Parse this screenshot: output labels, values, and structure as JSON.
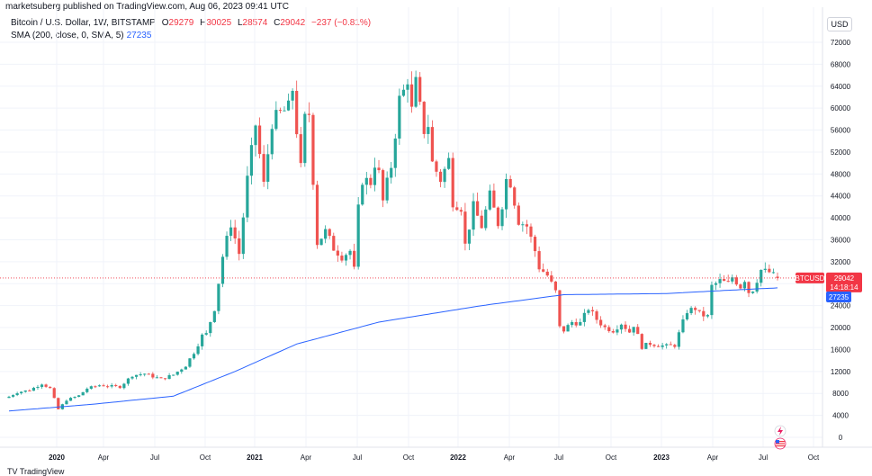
{
  "credit": "marketsuberg published on TradingView.com, Aug 06, 2023 09:41 UTC",
  "legend": {
    "symbol": "Bitcoin / U.S. Dollar, 1W, BITSTAMP",
    "o_label": "O",
    "o_value": "29279",
    "h_label": "H",
    "h_value": "30025",
    "l_label": "L",
    "l_value": "28574",
    "c_label": "C",
    "c_value": "29042",
    "change": "−237 (−0.81%)",
    "sma_label": "SMA (200, close, 0, SMA, 5)",
    "sma_value": "27235"
  },
  "currency": "USD",
  "bottom_text": "TV TradingView",
  "colors": {
    "up": "#26a69a",
    "down": "#ef5350",
    "sma": "#2962ff",
    "price_tag": "#f23645",
    "sma_tag": "#2962ff"
  },
  "chart_data": {
    "type": "candlestick",
    "title": "Bitcoin / U.S. Dollar, 1W, BITSTAMP",
    "ylim": [
      -1000,
      74000
    ],
    "y_ticks": [
      0,
      4000,
      8000,
      12000,
      16000,
      20000,
      24000,
      28000,
      32000,
      36000,
      40000,
      44000,
      48000,
      52000,
      56000,
      60000,
      64000,
      68000,
      72000
    ],
    "y_tick_labels": [
      "0",
      "4000",
      "8000",
      "12000",
      "16000",
      "20000",
      "24000",
      "28000",
      "32000",
      "36000",
      "40000",
      "44000",
      "48000",
      "52000",
      "56000",
      "60000",
      "64000",
      "68000",
      "72000"
    ],
    "x_labels": [
      "2020",
      "Apr",
      "Jul",
      "Oct",
      "2021",
      "Apr",
      "Jul",
      "Oct",
      "2022",
      "Apr",
      "Jul",
      "Oct",
      "2023",
      "Apr",
      "Jul",
      "Oct"
    ],
    "x_bold": [
      true,
      false,
      false,
      false,
      true,
      false,
      false,
      false,
      true,
      false,
      false,
      false,
      true,
      false,
      false,
      false
    ],
    "last_price": 29042,
    "last_price_label": "BTCUSD",
    "countdown": "14:18:14",
    "sma_value": 27235,
    "sma_label_text": "27235",
    "close_anchors": [
      {
        "w": 0,
        "c": 7400
      },
      {
        "w": 2,
        "c": 8200
      },
      {
        "w": 5,
        "c": 8600
      },
      {
        "w": 8,
        "c": 9800
      },
      {
        "w": 10,
        "c": 8900
      },
      {
        "w": 12,
        "c": 5100
      },
      {
        "w": 14,
        "c": 6800
      },
      {
        "w": 17,
        "c": 7600
      },
      {
        "w": 19,
        "c": 8900
      },
      {
        "w": 22,
        "c": 9500
      },
      {
        "w": 25,
        "c": 9300
      },
      {
        "w": 27,
        "c": 9200
      },
      {
        "w": 30,
        "c": 11300
      },
      {
        "w": 33,
        "c": 11600
      },
      {
        "w": 37,
        "c": 10600
      },
      {
        "w": 40,
        "c": 11400
      },
      {
        "w": 43,
        "c": 13100
      },
      {
        "w": 45,
        "c": 15500
      },
      {
        "w": 47,
        "c": 18500
      },
      {
        "w": 48,
        "c": 18800
      },
      {
        "w": 50,
        "c": 23500
      },
      {
        "w": 52,
        "c": 33000
      },
      {
        "w": 54,
        "c": 39000
      },
      {
        "w": 56,
        "c": 33500
      },
      {
        "w": 58,
        "c": 47000
      },
      {
        "w": 60,
        "c": 57000
      },
      {
        "w": 62,
        "c": 46000
      },
      {
        "w": 64,
        "c": 57500
      },
      {
        "w": 66,
        "c": 59000
      },
      {
        "w": 68,
        "c": 60000
      },
      {
        "w": 69,
        "c": 63500
      },
      {
        "w": 70,
        "c": 56000
      },
      {
        "w": 71,
        "c": 49000
      },
      {
        "w": 72,
        "c": 58000
      },
      {
        "w": 73,
        "c": 59000
      },
      {
        "w": 74,
        "c": 47000
      },
      {
        "w": 75,
        "c": 35500
      },
      {
        "w": 77,
        "c": 37500
      },
      {
        "w": 79,
        "c": 34500
      },
      {
        "w": 81,
        "c": 33000
      },
      {
        "w": 83,
        "c": 34000
      },
      {
        "w": 84,
        "c": 30500
      },
      {
        "w": 85,
        "c": 41500
      },
      {
        "w": 86,
        "c": 47000
      },
      {
        "w": 88,
        "c": 46500
      },
      {
        "w": 89,
        "c": 50000
      },
      {
        "w": 90,
        "c": 48000
      },
      {
        "w": 91,
        "c": 43000
      },
      {
        "w": 93,
        "c": 49500
      },
      {
        "w": 95,
        "c": 61500
      },
      {
        "w": 96,
        "c": 63000
      },
      {
        "w": 97,
        "c": 65500
      },
      {
        "w": 98,
        "c": 59500
      },
      {
        "w": 99,
        "c": 64500
      },
      {
        "w": 100,
        "c": 60000
      },
      {
        "w": 101,
        "c": 56000
      },
      {
        "w": 102,
        "c": 57000
      },
      {
        "w": 103,
        "c": 50000
      },
      {
        "w": 105,
        "c": 47000
      },
      {
        "w": 107,
        "c": 50500
      },
      {
        "w": 108,
        "c": 43000
      },
      {
        "w": 110,
        "c": 42000
      },
      {
        "w": 111,
        "c": 35000
      },
      {
        "w": 113,
        "c": 42000
      },
      {
        "w": 115,
        "c": 38500
      },
      {
        "w": 117,
        "c": 44000
      },
      {
        "w": 119,
        "c": 39000
      },
      {
        "w": 120,
        "c": 42500
      },
      {
        "w": 121,
        "c": 47000
      },
      {
        "w": 122,
        "c": 46500
      },
      {
        "w": 124,
        "c": 39500
      },
      {
        "w": 126,
        "c": 38500
      },
      {
        "w": 128,
        "c": 34000
      },
      {
        "w": 129,
        "c": 31000
      },
      {
        "w": 131,
        "c": 29500
      },
      {
        "w": 133,
        "c": 26500
      },
      {
        "w": 134,
        "c": 20000
      },
      {
        "w": 135,
        "c": 19500
      },
      {
        "w": 137,
        "c": 21000
      },
      {
        "w": 139,
        "c": 20800
      },
      {
        "w": 141,
        "c": 23500
      },
      {
        "w": 143,
        "c": 21500
      },
      {
        "w": 145,
        "c": 20000
      },
      {
        "w": 147,
        "c": 19500
      },
      {
        "w": 149,
        "c": 20800
      },
      {
        "w": 151,
        "c": 19200
      },
      {
        "w": 152,
        "c": 20500
      },
      {
        "w": 154,
        "c": 16500
      },
      {
        "w": 156,
        "c": 17100
      },
      {
        "w": 158,
        "c": 16800
      },
      {
        "w": 160,
        "c": 16600
      },
      {
        "w": 162,
        "c": 16800
      },
      {
        "w": 164,
        "c": 21000
      },
      {
        "w": 165,
        "c": 23000
      },
      {
        "w": 167,
        "c": 23500
      },
      {
        "w": 168,
        "c": 22500
      },
      {
        "w": 170,
        "c": 22000
      },
      {
        "w": 171,
        "c": 27500
      },
      {
        "w": 173,
        "c": 28500
      },
      {
        "w": 175,
        "c": 28000
      },
      {
        "w": 176,
        "c": 29200
      },
      {
        "w": 178,
        "c": 27500
      },
      {
        "w": 179,
        "c": 28800
      },
      {
        "w": 180,
        "c": 26500
      },
      {
        "w": 181,
        "c": 27000
      },
      {
        "w": 183,
        "c": 30500
      },
      {
        "w": 184,
        "c": 30200
      },
      {
        "w": 185,
        "c": 30100
      },
      {
        "w": 186,
        "c": 29500
      },
      {
        "w": 187,
        "c": 29042
      }
    ],
    "sma_anchors": [
      {
        "w": 0,
        "v": 4800
      },
      {
        "w": 20,
        "v": 6000
      },
      {
        "w": 40,
        "v": 7500
      },
      {
        "w": 55,
        "v": 12000
      },
      {
        "w": 70,
        "v": 17000
      },
      {
        "w": 90,
        "v": 21000
      },
      {
        "w": 115,
        "v": 24000
      },
      {
        "w": 135,
        "v": 26000
      },
      {
        "w": 160,
        "v": 26200
      },
      {
        "w": 175,
        "v": 26800
      },
      {
        "w": 187,
        "v": 27235
      }
    ]
  }
}
